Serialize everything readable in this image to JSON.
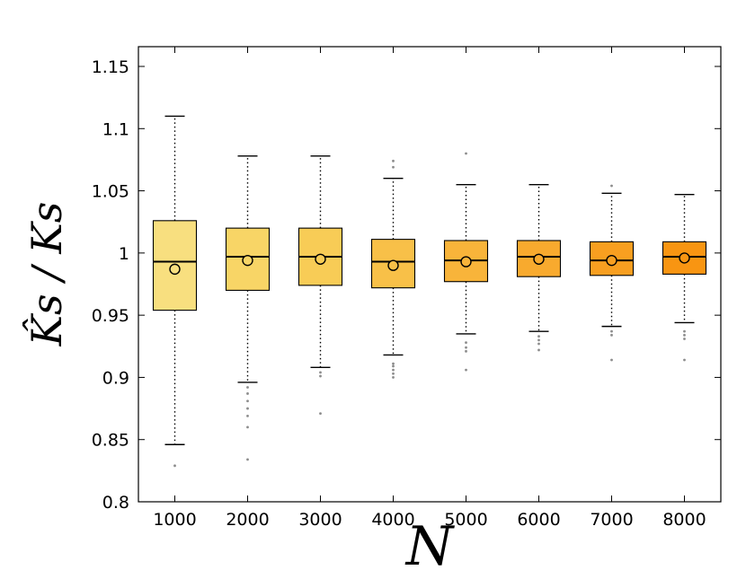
{
  "colors": {
    "box_fills": [
      "#f8df7f",
      "#f8d566",
      "#f8cc56",
      "#f8c048",
      "#f8b43a",
      "#f8aa2e",
      "#f89f20",
      "#f89512"
    ],
    "box_edge": "#000000",
    "outlier": "#8c8c8c",
    "axis": "#000000"
  },
  "chart_data": {
    "type": "box",
    "title": "",
    "xlabel": "N",
    "ylabel": "K̂s / Ks",
    "categories": [
      "1000",
      "2000",
      "3000",
      "4000",
      "5000",
      "6000",
      "7000",
      "8000"
    ],
    "ylim": [
      0.8,
      1.17
    ],
    "yticks": [
      "0.8",
      "0.85",
      "0.9",
      "0.95",
      "1",
      "1.05",
      "1.1",
      "1.15"
    ],
    "grid": false,
    "legend": "none",
    "boxes": [
      {
        "category": "1000",
        "whisker_low": 0.846,
        "q1": 0.954,
        "median": 0.993,
        "q3": 1.026,
        "whisker_high": 1.11,
        "mean": 0.987,
        "outliers": [
          0.829
        ]
      },
      {
        "category": "2000",
        "whisker_low": 0.896,
        "q1": 0.97,
        "median": 0.997,
        "q3": 1.02,
        "whisker_high": 1.078,
        "mean": 0.994,
        "outliers": [
          0.834,
          0.86,
          0.869,
          0.875,
          0.881,
          0.887,
          0.892
        ]
      },
      {
        "category": "3000",
        "whisker_low": 0.908,
        "q1": 0.974,
        "median": 0.997,
        "q3": 1.02,
        "whisker_high": 1.078,
        "mean": 0.995,
        "outliers": [
          0.871,
          0.901,
          0.904
        ]
      },
      {
        "category": "4000",
        "whisker_low": 0.918,
        "q1": 0.972,
        "median": 0.993,
        "q3": 1.011,
        "whisker_high": 1.06,
        "mean": 0.99,
        "outliers": [
          0.9,
          0.903,
          0.906,
          0.909,
          0.911,
          1.069,
          1.074
        ]
      },
      {
        "category": "5000",
        "whisker_low": 0.935,
        "q1": 0.977,
        "median": 0.994,
        "q3": 1.01,
        "whisker_high": 1.055,
        "mean": 0.993,
        "outliers": [
          0.906,
          0.921,
          0.924,
          0.928,
          1.08
        ]
      },
      {
        "category": "6000",
        "whisker_low": 0.937,
        "q1": 0.981,
        "median": 0.997,
        "q3": 1.01,
        "whisker_high": 1.055,
        "mean": 0.995,
        "outliers": [
          0.922,
          0.927,
          0.93,
          0.933
        ]
      },
      {
        "category": "7000",
        "whisker_low": 0.941,
        "q1": 0.982,
        "median": 0.994,
        "q3": 1.009,
        "whisker_high": 1.048,
        "mean": 0.994,
        "outliers": [
          0.914,
          0.934,
          0.937,
          1.054
        ]
      },
      {
        "category": "8000",
        "whisker_low": 0.944,
        "q1": 0.983,
        "median": 0.997,
        "q3": 1.009,
        "whisker_high": 1.047,
        "mean": 0.996,
        "outliers": [
          0.914,
          0.931,
          0.934,
          0.937
        ]
      }
    ]
  }
}
